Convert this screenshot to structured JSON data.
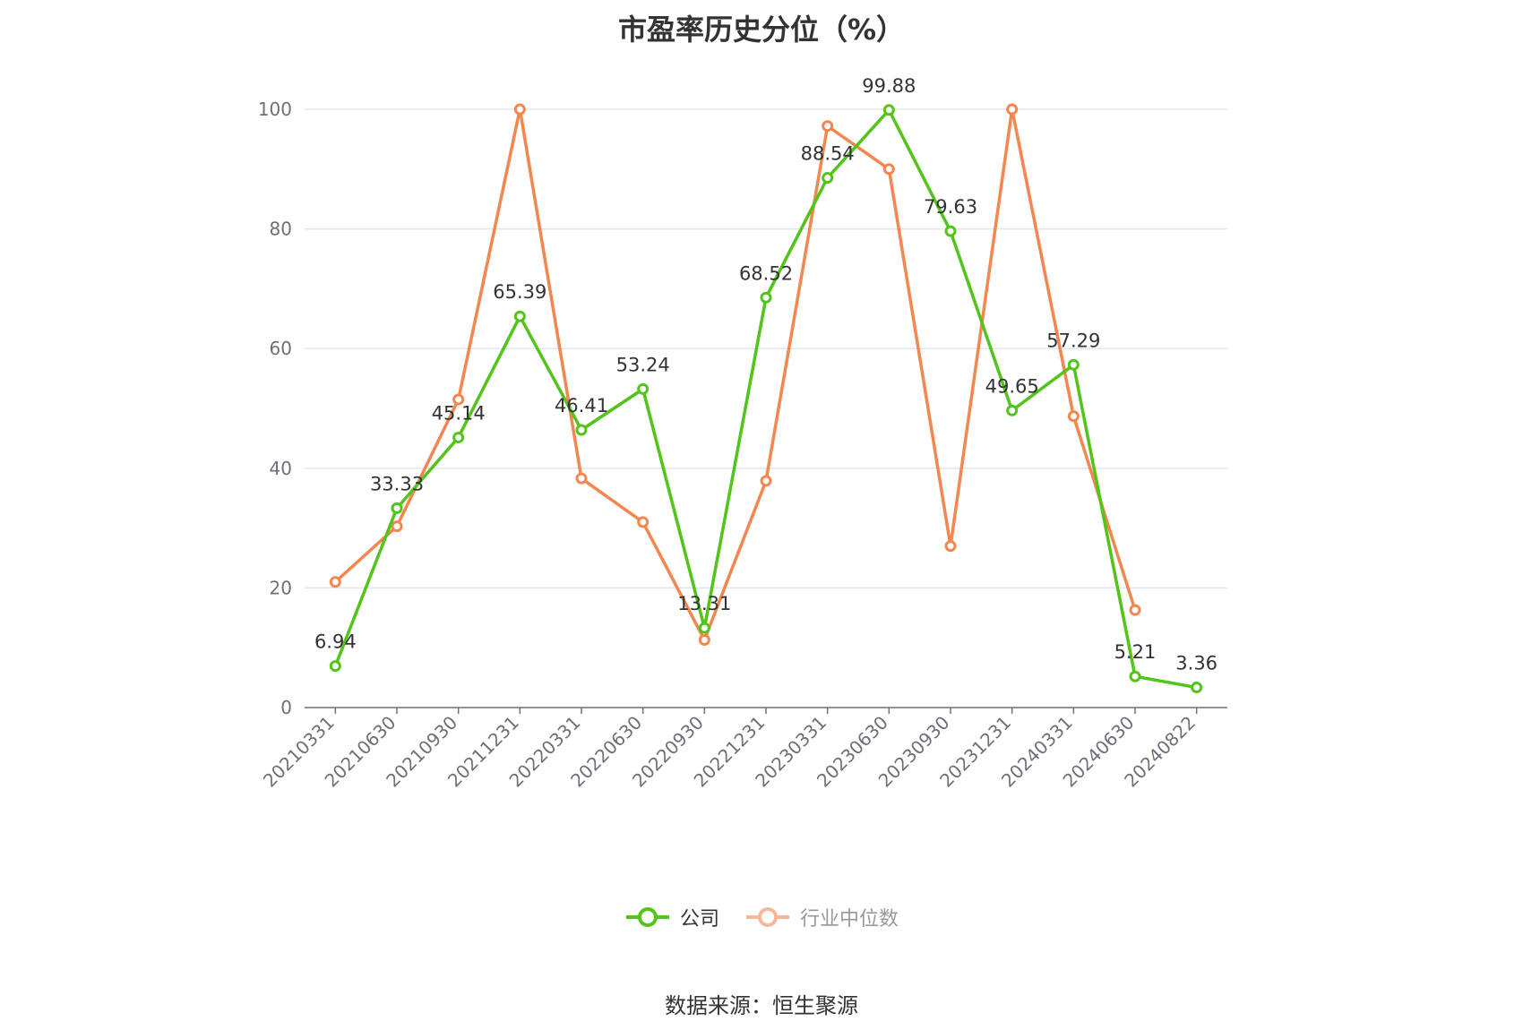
{
  "chart_data": {
    "type": "line",
    "title": "市盈率历史分位（%）",
    "categories": [
      "20210331",
      "20210630",
      "20210930",
      "20211231",
      "20220331",
      "20220630",
      "20220930",
      "20221231",
      "20230331",
      "20230630",
      "20230930",
      "20231231",
      "20240331",
      "20240630",
      "20240822"
    ],
    "series": [
      {
        "name": "公司",
        "color": "#52c41a",
        "values": [
          6.94,
          33.33,
          45.14,
          65.39,
          46.41,
          53.24,
          13.31,
          68.52,
          88.54,
          99.88,
          79.63,
          49.65,
          57.29,
          5.21,
          3.36
        ],
        "labels": [
          "6.94",
          "33.33",
          "45.14",
          "65.39",
          "46.41",
          "53.24",
          "13.31",
          "68.52",
          "88.54",
          "99.88",
          "79.63",
          "49.65",
          "57.29",
          "5.21",
          "3.36"
        ]
      },
      {
        "name": "行业中位数",
        "color": "#f4864f",
        "values": [
          21,
          30.3,
          51.5,
          100,
          38.3,
          31,
          11.3,
          37.9,
          97.2,
          90,
          27,
          100,
          48.7,
          16.3,
          null
        ]
      }
    ],
    "ylim": [
      0,
      100
    ],
    "yticks": [
      0,
      20,
      40,
      60,
      80,
      100
    ],
    "grid": true,
    "legend_position": "bottom"
  },
  "source_note": "数据来源：恒生聚源"
}
